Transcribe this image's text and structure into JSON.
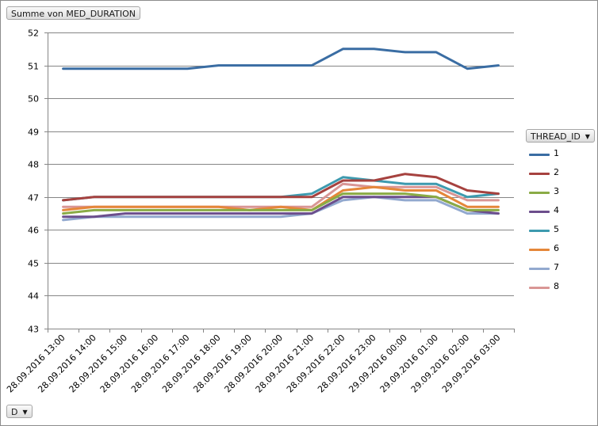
{
  "header": {
    "field_button_label": "Summe von MED_DURATION"
  },
  "legend_filter": {
    "label": "THREAD_ID",
    "icon": "dropdown-arrow-icon"
  },
  "axis_filter": {
    "label": "D",
    "icon": "dropdown-arrow-icon"
  },
  "chart_data": {
    "type": "line",
    "title": "",
    "xlabel": "",
    "ylabel": "",
    "ylim": [
      43,
      52
    ],
    "yticks": [
      43,
      44,
      45,
      46,
      47,
      48,
      49,
      50,
      51,
      52
    ],
    "grid": true,
    "legend_position": "right",
    "categories": [
      "28.09.2016 13:00",
      "28.09.2016 14:00",
      "28.09.2016 15:00",
      "28.09.2016 16:00",
      "28.09.2016 17:00",
      "28.09.2016 18:00",
      "28.09.2016 19:00",
      "28.09.2016 20:00",
      "28.09.2016 21:00",
      "28.09.2016 22:00",
      "28.09.2016 23:00",
      "29.09.2016 00:00",
      "29.09.2016 01:00",
      "29.09.2016 02:00",
      "29.09.2016 03:00"
    ],
    "series": [
      {
        "name": "1",
        "color": "#3a6da3",
        "values": [
          50.9,
          50.9,
          50.9,
          50.9,
          50.9,
          51.0,
          51.0,
          51.0,
          51.0,
          51.5,
          51.5,
          51.4,
          51.4,
          50.9,
          51.0
        ]
      },
      {
        "name": "2",
        "color": "#a6423f",
        "values": [
          46.9,
          47.0,
          47.0,
          47.0,
          47.0,
          47.0,
          47.0,
          47.0,
          47.0,
          47.5,
          47.5,
          47.7,
          47.6,
          47.2,
          47.1
        ]
      },
      {
        "name": "3",
        "color": "#8aab46",
        "values": [
          46.5,
          46.6,
          46.6,
          46.6,
          46.6,
          46.6,
          46.6,
          46.6,
          46.6,
          47.1,
          47.1,
          47.1,
          47.0,
          46.6,
          46.6
        ]
      },
      {
        "name": "4",
        "color": "#6c4e8c",
        "values": [
          46.4,
          46.4,
          46.5,
          46.5,
          46.5,
          46.5,
          46.5,
          46.5,
          46.5,
          47.0,
          47.0,
          47.0,
          47.0,
          46.6,
          46.5
        ]
      },
      {
        "name": "5",
        "color": "#3d9aaf",
        "values": [
          46.9,
          47.0,
          47.0,
          47.0,
          47.0,
          47.0,
          47.0,
          47.0,
          47.1,
          47.6,
          47.5,
          47.4,
          47.4,
          47.0,
          47.1
        ]
      },
      {
        "name": "6",
        "color": "#e5873a",
        "values": [
          46.6,
          46.7,
          46.7,
          46.7,
          46.7,
          46.7,
          46.6,
          46.7,
          46.6,
          47.2,
          47.3,
          47.2,
          47.2,
          46.7,
          46.7
        ]
      },
      {
        "name": "7",
        "color": "#92a9cf",
        "values": [
          46.3,
          46.4,
          46.4,
          46.4,
          46.4,
          46.4,
          46.4,
          46.4,
          46.5,
          46.9,
          47.0,
          46.9,
          46.9,
          46.5,
          46.5
        ]
      },
      {
        "name": "8",
        "color": "#d99695",
        "values": [
          46.7,
          46.7,
          46.7,
          46.7,
          46.7,
          46.7,
          46.7,
          46.7,
          46.7,
          47.4,
          47.3,
          47.3,
          47.3,
          46.9,
          46.9
        ]
      }
    ]
  }
}
